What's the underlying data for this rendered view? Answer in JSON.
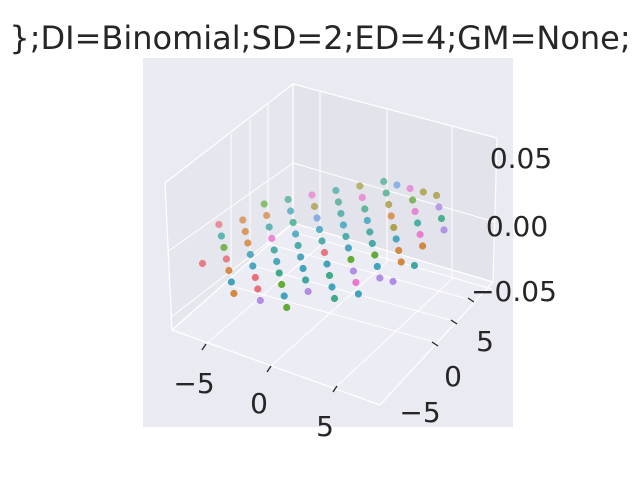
{
  "chart_data": {
    "type": "scatter",
    "title": "};DI=Binomial;SD=2;ED=4;GM=None;",
    "x_ticks": [
      "−5",
      "0",
      "5"
    ],
    "y_ticks": [
      "−5",
      "0",
      "5"
    ],
    "z_ticks": [
      "−0.05",
      "0.00",
      "0.05"
    ],
    "xlim": [
      -7,
      8
    ],
    "ylim": [
      -7,
      8
    ],
    "zlim": [
      -0.07,
      0.07
    ],
    "z_value": 0.0,
    "grid": true,
    "point_style": "circle",
    "colors": {
      "pane": "#eaeaf2",
      "grid": "#ffffff",
      "text": "#262626",
      "palette": [
        "#e8707b",
        "#d3883f",
        "#a79b3c",
        "#64ab3a",
        "#3eaa87",
        "#3fa7a1",
        "#42a3bb",
        "#6f9fe2",
        "#b08ee6",
        "#e878cf"
      ]
    },
    "points": [
      {
        "x": -6,
        "y": -2,
        "z": 0,
        "c": 5
      },
      {
        "x": -5,
        "y": -3,
        "z": 0,
        "c": 3
      },
      {
        "x": -5,
        "y": -1,
        "z": 0,
        "c": 1
      },
      {
        "x": -4,
        "y": -4,
        "z": 0,
        "c": 0
      },
      {
        "x": -4,
        "y": -2,
        "z": 0,
        "c": 1
      },
      {
        "x": -4,
        "y": 0,
        "z": 0,
        "c": 5
      },
      {
        "x": -3,
        "y": -5,
        "z": 0,
        "c": 1
      },
      {
        "x": -3,
        "y": -3,
        "z": 0,
        "c": 6
      },
      {
        "x": -3,
        "y": -1,
        "z": 0,
        "c": 9
      },
      {
        "x": -3,
        "y": 1,
        "z": 0,
        "c": 4
      },
      {
        "x": -3,
        "y": 3,
        "z": 0,
        "c": 2
      },
      {
        "x": -2,
        "y": -6,
        "z": 0,
        "c": 6
      },
      {
        "x": -2,
        "y": -4,
        "z": 0,
        "c": 6
      },
      {
        "x": -2,
        "y": -2,
        "z": 0,
        "c": 5
      },
      {
        "x": -2,
        "y": 0,
        "z": 0,
        "c": 6
      },
      {
        "x": -2,
        "y": 2,
        "z": 0,
        "c": 7
      },
      {
        "x": -2,
        "y": 4,
        "z": 0,
        "c": 4
      },
      {
        "x": -1,
        "y": -5,
        "z": 0,
        "c": 0
      },
      {
        "x": -1,
        "y": -3,
        "z": 0,
        "c": 6
      },
      {
        "x": -1,
        "y": -1,
        "z": 0,
        "c": 5
      },
      {
        "x": -1,
        "y": 1,
        "z": 0,
        "c": 6
      },
      {
        "x": -1,
        "y": 3,
        "z": 0,
        "c": 5
      },
      {
        "x": -1,
        "y": 5,
        "z": 0,
        "c": 9
      },
      {
        "x": 0,
        "y": -6,
        "z": 0,
        "c": 0
      },
      {
        "x": 0,
        "y": -4,
        "z": 0,
        "c": 4
      },
      {
        "x": 0,
        "y": -2,
        "z": 0,
        "c": 6
      },
      {
        "x": 0,
        "y": 0,
        "z": 0,
        "c": 5
      },
      {
        "x": 0,
        "y": 2,
        "z": 0,
        "c": 6
      },
      {
        "x": 0,
        "y": 4,
        "z": 0,
        "c": 4
      },
      {
        "x": 0,
        "y": 6,
        "z": 0,
        "c": 4
      },
      {
        "x": 1,
        "y": -5,
        "z": 0,
        "c": 3
      },
      {
        "x": 1,
        "y": -3,
        "z": 0,
        "c": 6
      },
      {
        "x": 1,
        "y": -1,
        "z": 0,
        "c": 0
      },
      {
        "x": 1,
        "y": 1,
        "z": 0,
        "c": 5
      },
      {
        "x": 1,
        "y": 3,
        "z": 0,
        "c": 6
      },
      {
        "x": 1,
        "y": 5,
        "z": 0,
        "c": 2
      },
      {
        "x": 2,
        "y": -6,
        "z": 0,
        "c": 6
      },
      {
        "x": 2,
        "y": -4,
        "z": 0,
        "c": 5
      },
      {
        "x": 2,
        "y": -2,
        "z": 0,
        "c": 6
      },
      {
        "x": 2,
        "y": 0,
        "z": 0,
        "c": 6
      },
      {
        "x": 2,
        "y": 2,
        "z": 0,
        "c": 5
      },
      {
        "x": 2,
        "y": 4,
        "z": 0,
        "c": 1
      },
      {
        "x": 2,
        "y": 6,
        "z": 0,
        "c": 3
      },
      {
        "x": 3,
        "y": -5,
        "z": 0,
        "c": 8
      },
      {
        "x": 3,
        "y": -3,
        "z": 0,
        "c": 4
      },
      {
        "x": 3,
        "y": -1,
        "z": 0,
        "c": 3
      },
      {
        "x": 3,
        "y": 1,
        "z": 0,
        "c": 5
      },
      {
        "x": 3,
        "y": 3,
        "z": 0,
        "c": 2
      },
      {
        "x": 3,
        "y": 5,
        "z": 0,
        "c": 9
      },
      {
        "x": 4,
        "y": -4,
        "z": 0,
        "c": 6
      },
      {
        "x": 4,
        "y": -2,
        "z": 0,
        "c": 8
      },
      {
        "x": 4,
        "y": 0,
        "z": 0,
        "c": 3
      },
      {
        "x": 4,
        "y": 2,
        "z": 0,
        "c": 6
      },
      {
        "x": 4,
        "y": 4,
        "z": 0,
        "c": 5
      },
      {
        "x": 5,
        "y": -3,
        "z": 0,
        "c": 9
      },
      {
        "x": 5,
        "y": -1,
        "z": 0,
        "c": 6
      },
      {
        "x": 5,
        "y": 1,
        "z": 0,
        "c": 1
      },
      {
        "x": 5,
        "y": 3,
        "z": 0,
        "c": 9
      },
      {
        "x": 6,
        "y": -4,
        "z": 0,
        "c": 6
      },
      {
        "x": 6,
        "y": -2,
        "z": 0,
        "c": 8
      },
      {
        "x": 6,
        "y": 0,
        "z": 0,
        "c": 1
      },
      {
        "x": -7,
        "y": -1,
        "z": 0,
        "c": 0
      },
      {
        "x": -6,
        "y": 0,
        "z": 0,
        "c": 1
      },
      {
        "x": -5,
        "y": 1,
        "z": 0,
        "c": 1
      },
      {
        "x": -4,
        "y": 2,
        "z": 0,
        "c": 6
      },
      {
        "x": -4,
        "y": 4,
        "z": 0,
        "c": 9
      },
      {
        "x": -3,
        "y": 5,
        "z": 0,
        "c": 5
      },
      {
        "x": -2,
        "y": 6,
        "z": 0,
        "c": 2
      },
      {
        "x": -1,
        "y": 7,
        "z": 0,
        "c": 4
      },
      {
        "x": 0,
        "y": 7,
        "z": 0,
        "c": 7
      },
      {
        "x": 1,
        "y": 7,
        "z": 0,
        "c": 9
      },
      {
        "x": 2,
        "y": 7,
        "z": 0,
        "c": 2
      },
      {
        "x": 3,
        "y": 7,
        "z": 0,
        "c": 2
      },
      {
        "x": 4,
        "y": 6,
        "z": 0,
        "c": 8
      },
      {
        "x": 5,
        "y": 5,
        "z": 0,
        "c": 4
      },
      {
        "x": 6,
        "y": 2,
        "z": 0,
        "c": 1
      },
      {
        "x": 7,
        "y": 0,
        "z": 0,
        "c": 5
      },
      {
        "x": 7,
        "y": -2,
        "z": 0,
        "c": 8
      },
      {
        "x": -5,
        "y": -5,
        "z": 0,
        "c": 0
      },
      {
        "x": -1,
        "y": -7,
        "z": 0,
        "c": 1
      },
      {
        "x": 1,
        "y": -7,
        "z": 0,
        "c": 8
      },
      {
        "x": 3,
        "y": -7,
        "z": 0,
        "c": 3
      },
      {
        "x": 5,
        "y": -5,
        "z": 0,
        "c": 4
      },
      {
        "x": -6,
        "y": 2,
        "z": 0,
        "c": 3
      },
      {
        "x": -5,
        "y": 3,
        "z": 0,
        "c": 4
      },
      {
        "x": 6,
        "y": 4,
        "z": 0,
        "c": 8
      }
    ]
  }
}
